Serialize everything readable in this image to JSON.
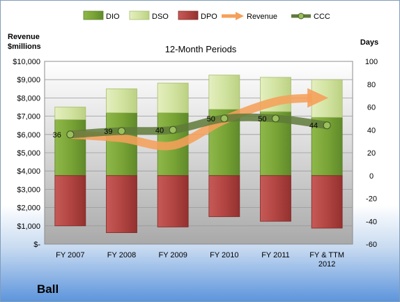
{
  "company": "Ball",
  "chart_data": {
    "type": "bar",
    "title": "12-Month Periods",
    "left_axis_label": [
      "Revenue",
      "$millions"
    ],
    "right_axis_label": "Days",
    "left_ticks": [
      "$10,000",
      "$9,000",
      "$8,000",
      "$7,000",
      "$6,000",
      "$5,000",
      "$4,000",
      "$3,000",
      "$2,000",
      "$1,000",
      "$-"
    ],
    "right_ticks": [
      "100",
      "80",
      "60",
      "40",
      "20",
      "0",
      "-20",
      "-40",
      "-60"
    ],
    "categories": [
      [
        "FY 2007"
      ],
      [
        "FY 2008"
      ],
      [
        "FY 2009"
      ],
      [
        "FY 2010"
      ],
      [
        "FY 2011"
      ],
      [
        "FY & TTM",
        "2012"
      ]
    ],
    "left_range": [
      0,
      10000
    ],
    "right_range": [
      -60,
      100
    ],
    "series": [
      {
        "name": "DIO",
        "color": "#7eaa3c",
        "values": [
          49,
          55,
          55,
          58,
          56,
          51
        ]
      },
      {
        "name": "DSO",
        "color": "#d6e6a8",
        "values": [
          11,
          21,
          26,
          30,
          30,
          33
        ]
      },
      {
        "name": "DPO",
        "color": "#b94a48",
        "values": [
          -44,
          -50,
          -45,
          -36,
          -40,
          -46
        ]
      },
      {
        "name": "Revenue",
        "color": "#f5a05a",
        "values": [
          6000,
          5800,
          5400,
          6800,
          7800,
          8000
        ]
      },
      {
        "name": "CCC",
        "color": "#6f8a45",
        "values": [
          36,
          39,
          40,
          50,
          50,
          44
        ]
      }
    ],
    "ccc_labels": [
      "36",
      "39",
      "40",
      "50",
      "50",
      "44"
    ]
  }
}
